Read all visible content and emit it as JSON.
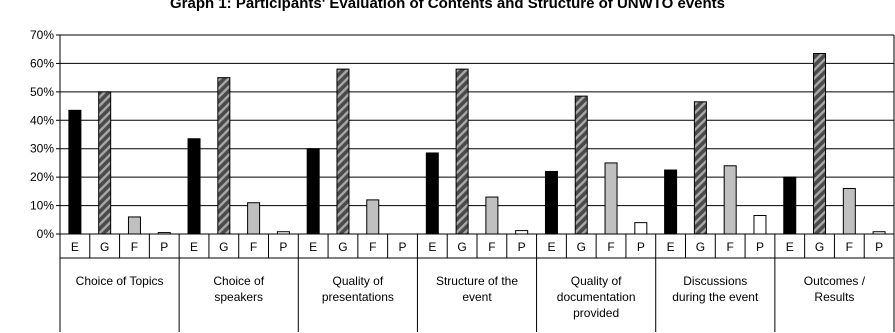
{
  "chart_data": {
    "type": "bar",
    "title": "Graph 1: Participants' Evaluation of Contents and Structure of UNWTO events",
    "xlabel": "",
    "ylabel": "",
    "ylim": [
      0,
      70
    ],
    "yticks": [
      "0%",
      "10%",
      "20%",
      "30%",
      "40%",
      "50%",
      "60%",
      "70%"
    ],
    "ytick_values": [
      0,
      10,
      20,
      30,
      40,
      50,
      60,
      70
    ],
    "grid": true,
    "legend": "none",
    "rating_labels": [
      "E",
      "G",
      "F",
      "P"
    ],
    "groups": [
      {
        "label": "Choice of Topics",
        "values": [
          43.5,
          50,
          6,
          0.5
        ]
      },
      {
        "label": "Choice of speakers",
        "values": [
          33.5,
          55,
          11,
          0.8
        ]
      },
      {
        "label": "Quality of presentations",
        "values": [
          30,
          58,
          12,
          0
        ]
      },
      {
        "label": "Structure of the event",
        "values": [
          28.5,
          58,
          13,
          1.2
        ]
      },
      {
        "label": "Quality of documentation provided",
        "values": [
          22,
          48.5,
          25,
          4
        ]
      },
      {
        "label": "Discussions during the event",
        "values": [
          22.5,
          46.5,
          24,
          6.5
        ]
      },
      {
        "label": "Outcomes / Results",
        "values": [
          20,
          63.5,
          16,
          0.8
        ]
      }
    ],
    "colors": {
      "E": "#000000",
      "G_base": "#4a4a4a",
      "G_stripe": "#a8a8a8",
      "F": "#c0c0c0",
      "P": "#ffffff",
      "stroke": "#000000",
      "grid": "#000000"
    }
  }
}
